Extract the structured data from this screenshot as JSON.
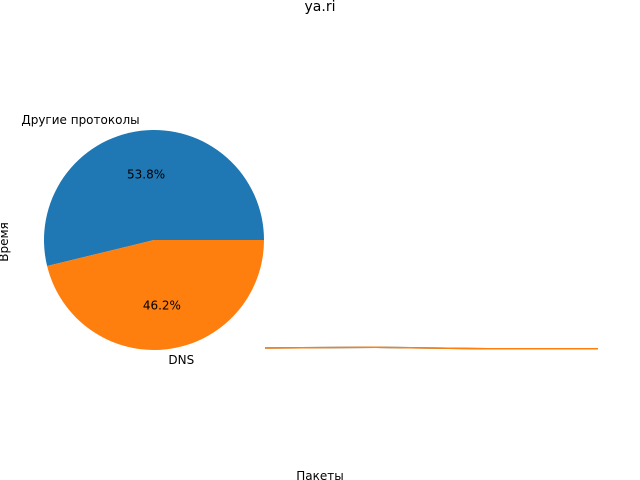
{
  "chart_data": {
    "title": "ya.ri",
    "xlabel": "Пакеты",
    "ylabel": "Время",
    "pie": {
      "type": "pie",
      "slices": [
        {
          "label": "Другие протоколы",
          "percent_label": "53.8%",
          "value": 53.8,
          "color": "#1f77b4"
        },
        {
          "label": "DNS",
          "percent_label": "46.2%",
          "value": 46.2,
          "color": "#ff7f0e"
        }
      ]
    },
    "line": {
      "type": "line",
      "x": [
        0,
        1,
        2,
        3
      ],
      "series": [
        {
          "values": [
            0.5,
            0.53,
            0.47,
            0.47
          ],
          "color": "#1f77b4"
        },
        {
          "values": [
            0.5,
            0.53,
            0.47,
            0.47
          ],
          "color": "#ff7f0e"
        }
      ],
      "ylim": [
        0,
        10
      ],
      "grid": false
    }
  }
}
